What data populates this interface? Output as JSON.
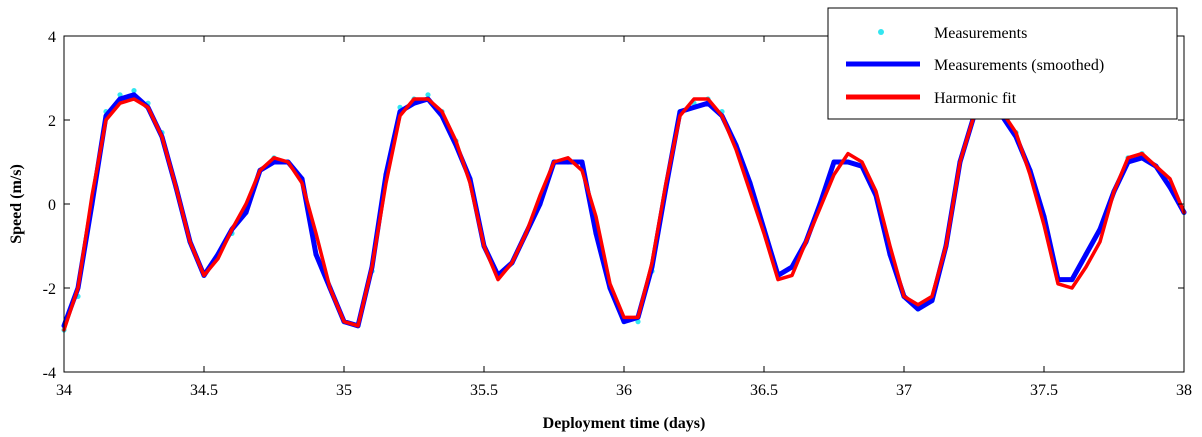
{
  "chart_data": {
    "type": "line",
    "title": "",
    "xlabel": "Deployment time (days)",
    "ylabel": "Speed (m/s)",
    "xlim": [
      34,
      38
    ],
    "ylim": [
      -4,
      4
    ],
    "xticks": [
      34,
      34.5,
      35,
      35.5,
      36,
      36.5,
      37,
      37.5,
      38
    ],
    "yticks": [
      -4,
      -2,
      0,
      2,
      4
    ],
    "xtick_labels": [
      "34",
      "34.5",
      "35",
      "35.5",
      "36",
      "36.5",
      "37",
      "37.5",
      "38"
    ],
    "ytick_labels": [
      "-4",
      "-2",
      "0",
      "2",
      "4"
    ],
    "grid": false,
    "legend_position": "top-right",
    "series": [
      {
        "name": "Measurements",
        "style": "scatter",
        "color": "#33e6f0",
        "x": [
          34.0,
          34.05,
          34.1,
          34.15,
          34.2,
          34.25,
          34.3,
          34.35,
          34.4,
          34.45,
          34.5,
          34.55,
          34.6,
          34.65,
          34.7,
          34.75,
          34.8,
          34.85,
          34.9,
          34.95,
          35.0,
          35.05,
          35.1,
          35.15,
          35.2,
          35.25,
          35.3,
          35.35,
          35.4,
          35.45,
          35.5,
          35.55,
          35.6,
          35.65,
          35.7,
          35.75,
          35.8,
          35.85,
          35.9,
          35.95,
          36.0,
          36.05,
          36.1,
          36.15,
          36.2,
          36.25,
          36.3,
          36.35,
          36.4,
          36.45,
          36.5,
          36.55,
          36.6,
          36.65,
          36.7,
          36.75,
          36.8,
          36.85,
          36.9,
          36.95,
          37.0,
          37.05,
          37.1,
          37.15,
          37.2,
          37.25,
          37.3,
          37.35,
          37.4,
          37.45,
          37.5,
          37.55,
          37.6,
          37.65,
          37.7,
          37.75,
          37.8,
          37.85,
          37.9,
          37.95,
          38.0
        ],
        "values": [
          -3.0,
          -2.2,
          0.0,
          2.2,
          2.6,
          2.7,
          2.4,
          1.7,
          0.4,
          -0.9,
          -1.7,
          -1.2,
          -0.7,
          -0.2,
          0.8,
          1.1,
          1.0,
          0.6,
          -1.2,
          -2.0,
          -2.8,
          -2.9,
          -1.6,
          0.7,
          2.3,
          2.5,
          2.6,
          2.2,
          1.5,
          0.6,
          -1.0,
          -1.7,
          -1.4,
          -0.7,
          0.0,
          1.0,
          1.0,
          1.0,
          -0.7,
          -2.0,
          -2.8,
          -2.8,
          -1.6,
          0.4,
          2.2,
          2.4,
          2.5,
          2.2,
          1.4,
          0.5,
          -0.6,
          -1.7,
          -1.5,
          -0.9,
          0.0,
          1.0,
          1.0,
          0.9,
          0.2,
          -1.2,
          -2.2,
          -2.5,
          -2.3,
          -1.0,
          1.0,
          2.1,
          2.2,
          2.2,
          1.7,
          0.8,
          -0.3,
          -1.8,
          -1.8,
          -1.2,
          -0.6,
          0.3,
          1.1,
          1.2,
          0.9,
          0.4,
          -0.2
        ]
      },
      {
        "name": "Measurements (smoothed)",
        "style": "line",
        "color": "#0000ff",
        "x": [
          34.0,
          34.05,
          34.1,
          34.15,
          34.2,
          34.25,
          34.3,
          34.35,
          34.4,
          34.45,
          34.5,
          34.55,
          34.6,
          34.65,
          34.7,
          34.75,
          34.8,
          34.85,
          34.9,
          34.95,
          35.0,
          35.05,
          35.1,
          35.15,
          35.2,
          35.25,
          35.3,
          35.35,
          35.4,
          35.45,
          35.5,
          35.55,
          35.6,
          35.65,
          35.7,
          35.75,
          35.8,
          35.85,
          35.9,
          35.95,
          36.0,
          36.05,
          36.1,
          36.15,
          36.2,
          36.25,
          36.3,
          36.35,
          36.4,
          36.45,
          36.5,
          36.55,
          36.6,
          36.65,
          36.7,
          36.75,
          36.8,
          36.85,
          36.9,
          36.95,
          37.0,
          37.05,
          37.1,
          37.15,
          37.2,
          37.25,
          37.3,
          37.35,
          37.4,
          37.45,
          37.5,
          37.55,
          37.6,
          37.65,
          37.7,
          37.75,
          37.8,
          37.85,
          37.9,
          37.95,
          38.0
        ],
        "values": [
          -2.9,
          -2.0,
          0.0,
          2.1,
          2.5,
          2.6,
          2.3,
          1.6,
          0.4,
          -0.9,
          -1.7,
          -1.2,
          -0.6,
          -0.2,
          0.8,
          1.0,
          1.0,
          0.6,
          -1.2,
          -2.0,
          -2.8,
          -2.9,
          -1.5,
          0.7,
          2.2,
          2.4,
          2.5,
          2.1,
          1.4,
          0.6,
          -1.0,
          -1.7,
          -1.4,
          -0.7,
          0.0,
          1.0,
          1.0,
          1.0,
          -0.7,
          -2.0,
          -2.8,
          -2.7,
          -1.5,
          0.4,
          2.2,
          2.3,
          2.4,
          2.1,
          1.4,
          0.5,
          -0.6,
          -1.7,
          -1.5,
          -0.9,
          0.0,
          1.0,
          1.0,
          0.9,
          0.2,
          -1.2,
          -2.2,
          -2.5,
          -2.3,
          -1.0,
          1.0,
          2.1,
          2.1,
          2.1,
          1.6,
          0.8,
          -0.3,
          -1.8,
          -1.8,
          -1.2,
          -0.6,
          0.3,
          1.0,
          1.1,
          0.9,
          0.4,
          -0.2
        ]
      },
      {
        "name": "Harmonic fit",
        "style": "line",
        "color": "#ff0000",
        "x": [
          34.0,
          34.05,
          34.1,
          34.15,
          34.2,
          34.25,
          34.3,
          34.35,
          34.4,
          34.45,
          34.5,
          34.55,
          34.6,
          34.65,
          34.7,
          34.75,
          34.8,
          34.85,
          34.9,
          34.95,
          35.0,
          35.05,
          35.1,
          35.15,
          35.2,
          35.25,
          35.3,
          35.35,
          35.4,
          35.45,
          35.5,
          35.55,
          35.6,
          35.65,
          35.7,
          35.75,
          35.8,
          35.85,
          35.9,
          35.95,
          36.0,
          36.05,
          36.1,
          36.15,
          36.2,
          36.25,
          36.3,
          36.35,
          36.4,
          36.45,
          36.5,
          36.55,
          36.6,
          36.65,
          36.7,
          36.75,
          36.8,
          36.85,
          36.9,
          36.95,
          37.0,
          37.05,
          37.1,
          37.15,
          37.2,
          37.25,
          37.3,
          37.35,
          37.4,
          37.45,
          37.5,
          37.55,
          37.6,
          37.65,
          37.7,
          37.75,
          37.8,
          37.85,
          37.9,
          37.95,
          38.0
        ],
        "values": [
          -3.0,
          -2.0,
          0.2,
          2.0,
          2.4,
          2.5,
          2.3,
          1.6,
          0.4,
          -0.9,
          -1.7,
          -1.3,
          -0.6,
          0.0,
          0.8,
          1.1,
          1.0,
          0.5,
          -0.7,
          -2.0,
          -2.8,
          -2.9,
          -1.5,
          0.5,
          2.1,
          2.5,
          2.5,
          2.2,
          1.5,
          0.5,
          -1.0,
          -1.8,
          -1.4,
          -0.7,
          0.2,
          1.0,
          1.1,
          0.8,
          -0.3,
          -1.9,
          -2.7,
          -2.7,
          -1.4,
          0.5,
          2.1,
          2.5,
          2.5,
          2.1,
          1.3,
          0.3,
          -0.7,
          -1.8,
          -1.7,
          -0.9,
          -0.1,
          0.7,
          1.2,
          1.0,
          0.3,
          -1.0,
          -2.2,
          -2.4,
          -2.2,
          -1.0,
          1.0,
          2.1,
          2.2,
          2.2,
          1.7,
          0.7,
          -0.5,
          -1.9,
          -2.0,
          -1.5,
          -0.9,
          0.3,
          1.1,
          1.2,
          0.9,
          0.6,
          -0.2
        ]
      }
    ]
  }
}
